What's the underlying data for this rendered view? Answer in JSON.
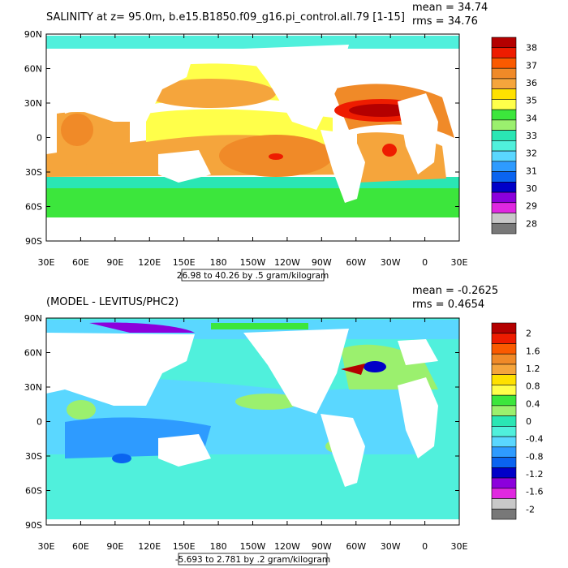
{
  "chart_data": [
    {
      "type": "heatmap",
      "title": "SALINITY at z=  95.0m, b.e15.B1850.f09_g16.pi_control.all.79 [1-15]",
      "stats": [
        "mean = 34.74",
        "rms = 34.76"
      ],
      "x_ticks": [
        "30E",
        "60E",
        "90E",
        "120E",
        "150E",
        "180",
        "150W",
        "120W",
        "90W",
        "60W",
        "30W",
        "0",
        "30E"
      ],
      "y_ticks": [
        "90N",
        "60N",
        "30N",
        "0",
        "30S",
        "60S",
        "90S"
      ],
      "xlim": [
        30,
        390
      ],
      "ylim": [
        -90,
        90
      ],
      "range_label": "26.98 to 40.26 by .5 gram/kilogram",
      "colorbar_labels": [
        "38",
        "37",
        "36",
        "35",
        "34",
        "33",
        "32",
        "31",
        "30",
        "29",
        "28"
      ],
      "colorbar_colors": [
        "#b40000",
        "#ee1c00",
        "#fa5a00",
        "#f08a28",
        "#f5a53c",
        "#ffe100",
        "#ffff4a",
        "#3ce63c",
        "#9bf06e",
        "#2ae6b4",
        "#50f0dc",
        "#5ad7ff",
        "#2e9bff",
        "#0a64f0",
        "#0000c8",
        "#8c00dc",
        "#e028e0",
        "#c8c8c8",
        "#787878"
      ],
      "field": "salinity",
      "units": "gram/kilogram",
      "value_min": 26.98,
      "value_max": 40.26,
      "interval": 0.5
    },
    {
      "type": "heatmap",
      "title": "(MODEL - LEVITUS/PHC2)",
      "stats": [
        "mean = -0.2625",
        "rms = 0.4654"
      ],
      "x_ticks": [
        "30E",
        "60E",
        "90E",
        "120E",
        "150E",
        "180",
        "150W",
        "120W",
        "90W",
        "60W",
        "30W",
        "0",
        "30E"
      ],
      "y_ticks": [
        "90N",
        "60N",
        "30N",
        "0",
        "30S",
        "60S",
        "90S"
      ],
      "xlim": [
        30,
        390
      ],
      "ylim": [
        -90,
        90
      ],
      "range_label": "-5.693 to 2.781 by .2 gram/kilogram",
      "colorbar_labels": [
        "2",
        "1.6",
        "1.2",
        "0.8",
        "0.4",
        "0",
        "-0.4",
        "-0.8",
        "-1.2",
        "-1.6",
        "-2"
      ],
      "colorbar_colors": [
        "#b40000",
        "#ee1c00",
        "#fa5a00",
        "#f08a28",
        "#f5a53c",
        "#ffe100",
        "#ffff4a",
        "#3ce63c",
        "#9bf06e",
        "#2ae6b4",
        "#50f0dc",
        "#5ad7ff",
        "#2e9bff",
        "#0a64f0",
        "#0000c8",
        "#8c00dc",
        "#e028e0",
        "#c8c8c8",
        "#787878"
      ],
      "field": "salinity difference",
      "units": "gram/kilogram",
      "value_min": -5.693,
      "value_max": 2.781,
      "interval": 0.2
    }
  ]
}
